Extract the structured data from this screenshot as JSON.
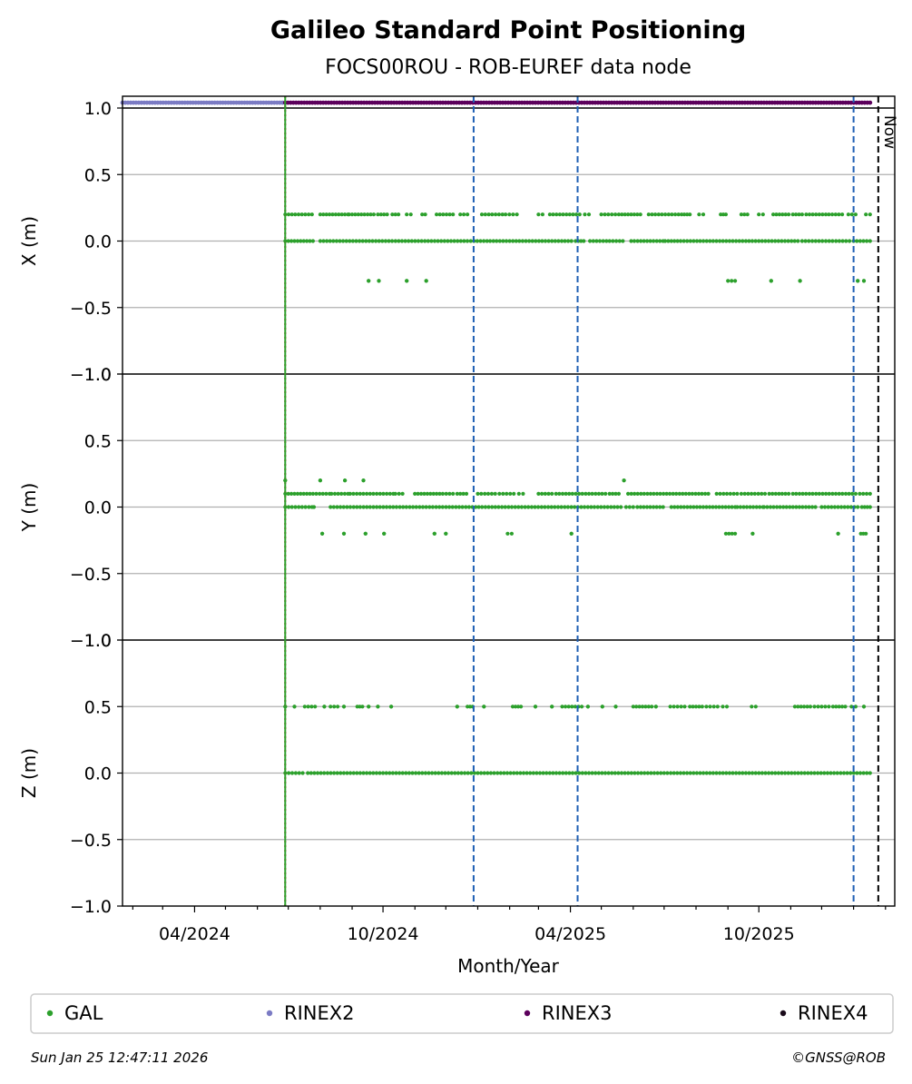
{
  "chart_data": {
    "type": "scatter",
    "title": "Galileo Standard Point Positioning",
    "subtitle": "FOCS00ROU - ROB-EUREF data node",
    "xlabel": "Month/Year",
    "x_ticks": [
      "04/2024",
      "10/2024",
      "04/2025",
      "10/2025"
    ],
    "x_tick_dates": [
      "2024-04-01",
      "2024-10-01",
      "2025-04-01",
      "2025-10-01"
    ],
    "x_range": [
      "2024-01-22",
      "2026-02-10"
    ],
    "grid": "y-only",
    "vertical_lines": [
      {
        "date": "2024-06-28",
        "color": "#dd0000",
        "style": "dotted"
      },
      {
        "date": "2024-06-28",
        "color": "#2ca02c",
        "style": "solid"
      },
      {
        "date": "2024-12-28",
        "color": "#1f5fb4",
        "style": "dashed"
      },
      {
        "date": "2025-04-08",
        "color": "#1f5fb4",
        "style": "dashed"
      },
      {
        "date": "2026-01-01",
        "color": "#1f5fb4",
        "style": "dashed"
      },
      {
        "date": "2026-01-25",
        "color": "#000000",
        "style": "dashed",
        "label": "Now"
      }
    ],
    "panels": [
      {
        "ylabel": "X (m)",
        "ylim": [
          -1.0,
          1.0
        ],
        "yticks": [
          "−1.0",
          "−0.5",
          "0.0",
          "0.5",
          "1.0"
        ],
        "series": [
          {
            "name": "GAL",
            "color": "#2ca02c",
            "levels": [
              {
                "value": 0.2,
                "ranges": [
                  [
                    "2024-06-28",
                    "2024-07-24"
                  ],
                  [
                    "2024-08-01",
                    "2024-08-28"
                  ],
                  [
                    "2024-08-29",
                    "2024-09-22"
                  ],
                  [
                    "2024-09-26",
                    "2024-10-05"
                  ],
                  [
                    "2024-10-10",
                    "2024-10-16"
                  ],
                  [
                    "2024-10-24",
                    "2024-10-28"
                  ],
                  [
                    "2024-11-08",
                    "2024-11-11"
                  ],
                  [
                    "2024-11-22",
                    "2024-12-08"
                  ],
                  [
                    "2024-12-15",
                    "2024-12-22"
                  ],
                  [
                    "2025-01-05",
                    "2025-01-25"
                  ],
                  [
                    "2025-01-28",
                    "2025-02-08"
                  ],
                  [
                    "2025-03-01",
                    "2025-03-05"
                  ],
                  [
                    "2025-03-12",
                    "2025-04-10"
                  ],
                  [
                    "2025-04-15",
                    "2025-04-19"
                  ],
                  [
                    "2025-05-01",
                    "2025-05-18"
                  ],
                  [
                    "2025-05-21",
                    "2025-06-08"
                  ],
                  [
                    "2025-06-16",
                    "2025-07-15"
                  ],
                  [
                    "2025-07-18",
                    "2025-07-26"
                  ],
                  [
                    "2025-08-04",
                    "2025-08-08"
                  ],
                  [
                    "2025-08-25",
                    "2025-08-30"
                  ],
                  [
                    "2025-09-14",
                    "2025-09-20"
                  ],
                  [
                    "2025-10-01",
                    "2025-10-05"
                  ],
                  [
                    "2025-10-15",
                    "2025-10-30"
                  ],
                  [
                    "2025-11-03",
                    "2025-11-12"
                  ],
                  [
                    "2025-11-16",
                    "2025-12-05"
                  ],
                  [
                    "2025-12-08",
                    "2025-12-21"
                  ],
                  [
                    "2025-12-27",
                    "2026-01-03"
                  ],
                  [
                    "2026-01-13",
                    "2026-01-17"
                  ]
                ]
              },
              {
                "value": 0.0,
                "ranges": [
                  [
                    "2024-06-28",
                    "2024-07-25"
                  ],
                  [
                    "2024-08-01",
                    "2025-01-10"
                  ],
                  [
                    "2025-01-13",
                    "2025-04-02"
                  ],
                  [
                    "2025-04-06",
                    "2025-04-14"
                  ],
                  [
                    "2025-04-20",
                    "2025-05-06"
                  ],
                  [
                    "2025-05-09",
                    "2025-05-22"
                  ],
                  [
                    "2025-05-30",
                    "2025-06-30"
                  ],
                  [
                    "2025-07-02",
                    "2025-07-14"
                  ],
                  [
                    "2025-07-17",
                    "2025-11-08"
                  ],
                  [
                    "2025-11-12",
                    "2025-12-28"
                  ],
                  [
                    "2026-01-01",
                    "2026-01-17"
                  ]
                ]
              },
              {
                "value": -0.3,
                "ranges": [
                  [
                    "2024-09-17",
                    "2024-09-17"
                  ],
                  [
                    "2024-09-27",
                    "2024-09-27"
                  ],
                  [
                    "2024-10-24",
                    "2024-10-24"
                  ],
                  [
                    "2024-11-12",
                    "2024-11-12"
                  ],
                  [
                    "2025-09-01",
                    "2025-09-08"
                  ],
                  [
                    "2025-10-13",
                    "2025-10-13"
                  ],
                  [
                    "2025-11-10",
                    "2025-11-10"
                  ],
                  [
                    "2026-01-05",
                    "2026-01-05"
                  ],
                  [
                    "2026-01-11",
                    "2026-01-11"
                  ]
                ]
              }
            ]
          }
        ]
      },
      {
        "ylabel": "Y (m)",
        "ylim": [
          -1.0,
          1.0
        ],
        "yticks": [
          "−1.0",
          "−0.5",
          "0.0",
          "0.5",
          "1.0"
        ],
        "series": [
          {
            "name": "GAL",
            "color": "#2ca02c",
            "levels": [
              {
                "value": 0.2,
                "ranges": [
                  [
                    "2024-06-28",
                    "2024-06-28"
                  ],
                  [
                    "2024-08-01",
                    "2024-08-01"
                  ],
                  [
                    "2024-08-25",
                    "2024-08-25"
                  ],
                  [
                    "2024-09-12",
                    "2024-09-12"
                  ],
                  [
                    "2025-05-23",
                    "2025-05-23"
                  ]
                ]
              },
              {
                "value": 0.1,
                "ranges": [
                  [
                    "2024-06-28",
                    "2024-07-22"
                  ],
                  [
                    "2024-07-25",
                    "2024-08-10"
                  ],
                  [
                    "2024-08-12",
                    "2024-08-28"
                  ],
                  [
                    "2024-08-30",
                    "2024-10-11"
                  ],
                  [
                    "2024-10-13",
                    "2024-10-20"
                  ],
                  [
                    "2024-11-01",
                    "2024-11-25"
                  ],
                  [
                    "2024-11-28",
                    "2024-12-08"
                  ],
                  [
                    "2024-12-12",
                    "2024-12-21"
                  ],
                  [
                    "2025-01-01",
                    "2025-01-18"
                  ],
                  [
                    "2025-01-22",
                    "2025-02-05"
                  ],
                  [
                    "2025-02-10",
                    "2025-02-14"
                  ],
                  [
                    "2025-03-01",
                    "2025-03-14"
                  ],
                  [
                    "2025-03-18",
                    "2025-05-05"
                  ],
                  [
                    "2025-05-09",
                    "2025-05-18"
                  ],
                  [
                    "2025-05-27",
                    "2025-08-13"
                  ],
                  [
                    "2025-08-21",
                    "2025-09-10"
                  ],
                  [
                    "2025-09-14",
                    "2025-10-07"
                  ],
                  [
                    "2025-10-11",
                    "2025-10-30"
                  ],
                  [
                    "2025-11-03",
                    "2026-01-03"
                  ],
                  [
                    "2026-01-07",
                    "2026-01-17"
                  ]
                ]
              },
              {
                "value": 0.0,
                "ranges": [
                  [
                    "2024-06-28",
                    "2024-07-21"
                  ],
                  [
                    "2024-07-24",
                    "2024-07-26"
                  ],
                  [
                    "2024-08-11",
                    "2024-12-30"
                  ],
                  [
                    "2025-01-02",
                    "2025-05-20"
                  ],
                  [
                    "2025-05-25",
                    "2025-06-01"
                  ],
                  [
                    "2025-06-05",
                    "2025-06-30"
                  ],
                  [
                    "2025-07-08",
                    "2025-09-08"
                  ],
                  [
                    "2025-09-10",
                    "2025-10-05"
                  ],
                  [
                    "2025-10-06",
                    "2025-11-25"
                  ],
                  [
                    "2025-12-01",
                    "2026-01-05"
                  ],
                  [
                    "2026-01-09",
                    "2026-01-17"
                  ]
                ]
              },
              {
                "value": -0.2,
                "ranges": [
                  [
                    "2024-08-03",
                    "2024-08-03"
                  ],
                  [
                    "2024-08-24",
                    "2024-08-24"
                  ],
                  [
                    "2024-09-14",
                    "2024-09-14"
                  ],
                  [
                    "2024-10-02",
                    "2024-10-02"
                  ],
                  [
                    "2024-11-20",
                    "2024-11-20"
                  ],
                  [
                    "2024-12-01",
                    "2024-12-01"
                  ],
                  [
                    "2025-01-30",
                    "2025-02-03"
                  ],
                  [
                    "2025-04-02",
                    "2025-04-02"
                  ],
                  [
                    "2025-08-30",
                    "2025-09-08"
                  ],
                  [
                    "2025-09-25",
                    "2025-09-25"
                  ],
                  [
                    "2025-12-17",
                    "2025-12-17"
                  ],
                  [
                    "2026-01-08",
                    "2026-01-13"
                  ]
                ]
              }
            ]
          }
        ]
      },
      {
        "ylabel": "Z (m)",
        "ylim": [
          -1.0,
          1.0
        ],
        "yticks": [
          "−1.0",
          "−0.5",
          "0.0",
          "0.5",
          "1.0"
        ],
        "series": [
          {
            "name": "GAL",
            "color": "#2ca02c",
            "levels": [
              {
                "value": 0.5,
                "ranges": [
                  [
                    "2024-06-28",
                    "2024-06-28"
                  ],
                  [
                    "2024-07-07",
                    "2024-07-07"
                  ],
                  [
                    "2024-07-17",
                    "2024-07-27"
                  ],
                  [
                    "2024-08-05",
                    "2024-08-05"
                  ],
                  [
                    "2024-08-11",
                    "2024-08-18"
                  ],
                  [
                    "2024-08-24",
                    "2024-08-24"
                  ],
                  [
                    "2024-09-06",
                    "2024-09-11"
                  ],
                  [
                    "2024-09-17",
                    "2024-09-17"
                  ],
                  [
                    "2024-09-26",
                    "2024-09-26"
                  ],
                  [
                    "2024-10-09",
                    "2024-10-09"
                  ],
                  [
                    "2024-12-12",
                    "2024-12-12"
                  ],
                  [
                    "2024-12-22",
                    "2024-12-27"
                  ],
                  [
                    "2025-01-07",
                    "2025-01-07"
                  ],
                  [
                    "2025-02-04",
                    "2025-02-12"
                  ],
                  [
                    "2025-02-26",
                    "2025-02-26"
                  ],
                  [
                    "2025-03-14",
                    "2025-03-14"
                  ],
                  [
                    "2025-03-24",
                    "2025-04-12"
                  ],
                  [
                    "2025-04-18",
                    "2025-04-18"
                  ],
                  [
                    "2025-05-02",
                    "2025-05-02"
                  ],
                  [
                    "2025-05-15",
                    "2025-05-15"
                  ],
                  [
                    "2025-06-01",
                    "2025-06-19"
                  ],
                  [
                    "2025-06-23",
                    "2025-06-23"
                  ],
                  [
                    "2025-07-07",
                    "2025-07-21"
                  ],
                  [
                    "2025-07-26",
                    "2025-08-07"
                  ],
                  [
                    "2025-08-11",
                    "2025-08-22"
                  ],
                  [
                    "2025-08-27",
                    "2025-08-31"
                  ],
                  [
                    "2025-09-24",
                    "2025-09-28"
                  ],
                  [
                    "2025-11-05",
                    "2025-11-20"
                  ],
                  [
                    "2025-11-24",
                    "2025-12-08"
                  ],
                  [
                    "2025-12-12",
                    "2025-12-24"
                  ],
                  [
                    "2025-12-30",
                    "2026-01-03"
                  ],
                  [
                    "2026-01-11",
                    "2026-01-11"
                  ]
                ]
              },
              {
                "value": 0.0,
                "ranges": [
                  [
                    "2024-06-28",
                    "2024-07-15"
                  ],
                  [
                    "2024-07-20",
                    "2026-01-17"
                  ]
                ]
              }
            ]
          }
        ]
      }
    ],
    "file_series": [
      {
        "name": "RINEX2",
        "color": "#7b7bc4",
        "y": 1.04,
        "range": [
          "2024-01-22",
          "2024-06-28"
        ]
      },
      {
        "name": "RINEX3",
        "color": "#5c005c",
        "y": 1.04,
        "range": [
          "2024-06-28",
          "2026-01-17"
        ]
      },
      {
        "name": "RINEX4",
        "color": "#1a0a1a",
        "y": 1.04,
        "range": []
      }
    ],
    "legend": [
      {
        "name": "GAL",
        "color": "#2ca02c"
      },
      {
        "name": "RINEX2",
        "color": "#7b7bc4"
      },
      {
        "name": "RINEX3",
        "color": "#5c005c"
      },
      {
        "name": "RINEX4",
        "color": "#1a0a1a"
      }
    ],
    "legend_placement": "bottom"
  },
  "footer": {
    "timestamp": "Sun Jan 25 12:47:11 2026",
    "copyright": "©GNSS@ROB"
  }
}
